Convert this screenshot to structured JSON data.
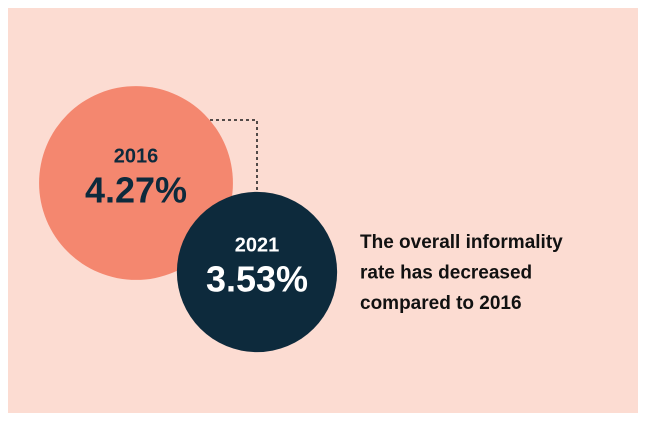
{
  "chart_data": {
    "type": "bubble",
    "categories": [
      "2016",
      "2021"
    ],
    "values": [
      4.27,
      3.53
    ],
    "value_labels": [
      "4.27%",
      "3.53%"
    ],
    "colors": [
      "#f4876f",
      "#0d2a3c"
    ],
    "text_colors": [
      "#0d2a3c",
      "#ffffff"
    ],
    "annotation": [
      "The overall informality",
      "rate has decreased",
      "compared to 2016"
    ]
  }
}
